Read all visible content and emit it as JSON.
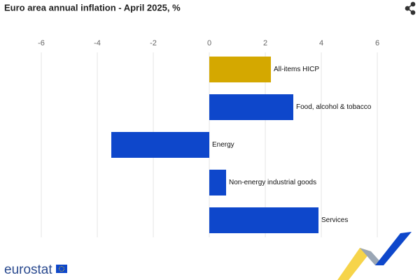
{
  "chart_data": {
    "type": "bar",
    "orientation": "horizontal",
    "title": "Euro area annual inflation - April 2025, %",
    "categories": [
      "All-items HICP",
      "Food, alcohol & tobacco",
      "Energy",
      "Non-energy industrial goods",
      "Services"
    ],
    "values": [
      2.2,
      3.0,
      -3.5,
      0.6,
      3.9
    ],
    "colors": [
      "#d4a800",
      "#0e47cb",
      "#0e47cb",
      "#0e47cb",
      "#0e47cb"
    ],
    "xlim": [
      -6,
      6
    ],
    "xticks": [
      -6,
      -4,
      -2,
      0,
      2,
      4,
      6
    ],
    "grid": true
  },
  "logo": "eurostat"
}
